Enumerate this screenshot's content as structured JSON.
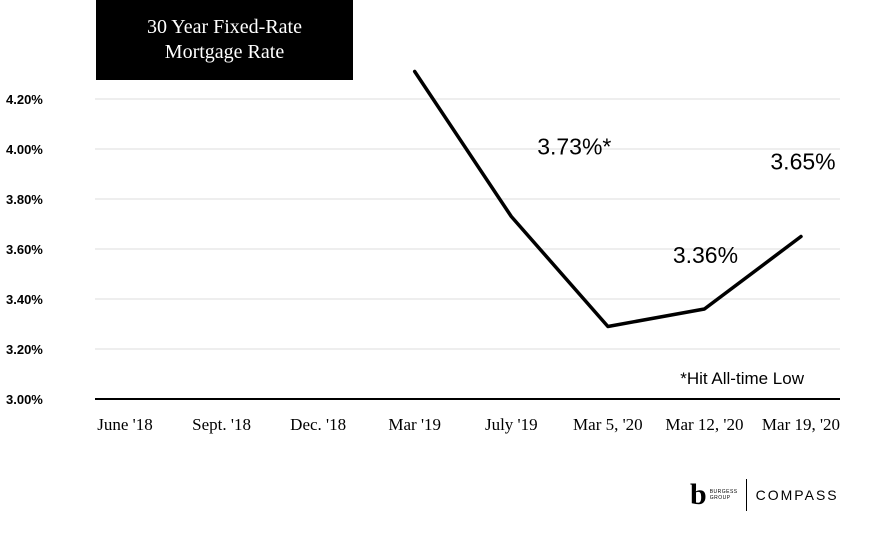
{
  "title": {
    "line1": "30 Year Fixed-Rate",
    "line2": "Mortgage Rate"
  },
  "chart_data": {
    "type": "line",
    "title": "30 Year Fixed-Rate Mortgage Rate",
    "categories": [
      "June '18",
      "Sept. '18",
      "Dec. '18",
      "Mar '19",
      "July '19",
      "Mar 5, '20",
      "Mar 12, '20",
      "Mar 19, '20"
    ],
    "series": [
      {
        "values": [
          null,
          null,
          null,
          4.31,
          3.73,
          3.29,
          3.36,
          3.65
        ]
      }
    ],
    "y_ticks": [
      "3.00%",
      "3.20%",
      "3.40%",
      "3.60%",
      "3.80%",
      "4.00%",
      "4.20%"
    ],
    "ylim": [
      3.0,
      4.2
    ],
    "grid": true,
    "annotations": [
      {
        "text": "3.73%*",
        "category": "July '19"
      },
      {
        "text": "3.36%",
        "category": "Mar 12, '20"
      },
      {
        "text": "3.65%",
        "category": "Mar 19, '20"
      }
    ],
    "footnote": "*Hit All-time Low",
    "line_color": "#000000",
    "grid_color": "#dddddd"
  },
  "logo": {
    "mark": "b",
    "line1": "BURGESS",
    "line2": "GROUP",
    "brand": "COMPASS"
  }
}
